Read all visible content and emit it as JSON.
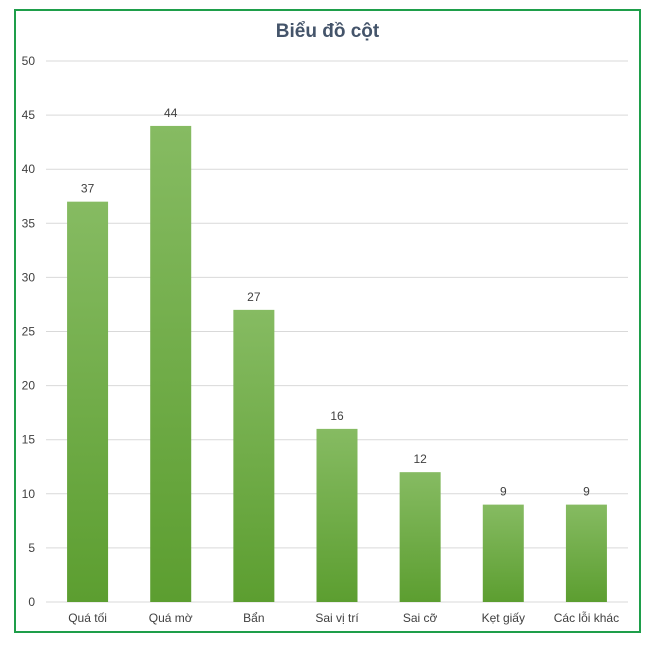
{
  "chart_data": {
    "type": "bar",
    "title": "Biểu đồ cột",
    "categories": [
      "Quá tối",
      "Quá mờ",
      "Bẩn",
      "Sai vị trí",
      "Sai cỡ",
      "Kẹt giấy",
      "Các lỗi khác"
    ],
    "values": [
      37,
      44,
      27,
      16,
      12,
      9,
      9
    ],
    "yticks": [
      0,
      5,
      10,
      15,
      20,
      25,
      30,
      35,
      40,
      45,
      50
    ],
    "ylim": [
      0,
      50
    ],
    "grid": true,
    "data_labels": true,
    "colors": {
      "bar_top": "#86bb62",
      "bar_bottom": "#5c9e30",
      "frame": "#1e9e4a",
      "title": "#44546a",
      "grid": "#d9d9d9"
    }
  }
}
